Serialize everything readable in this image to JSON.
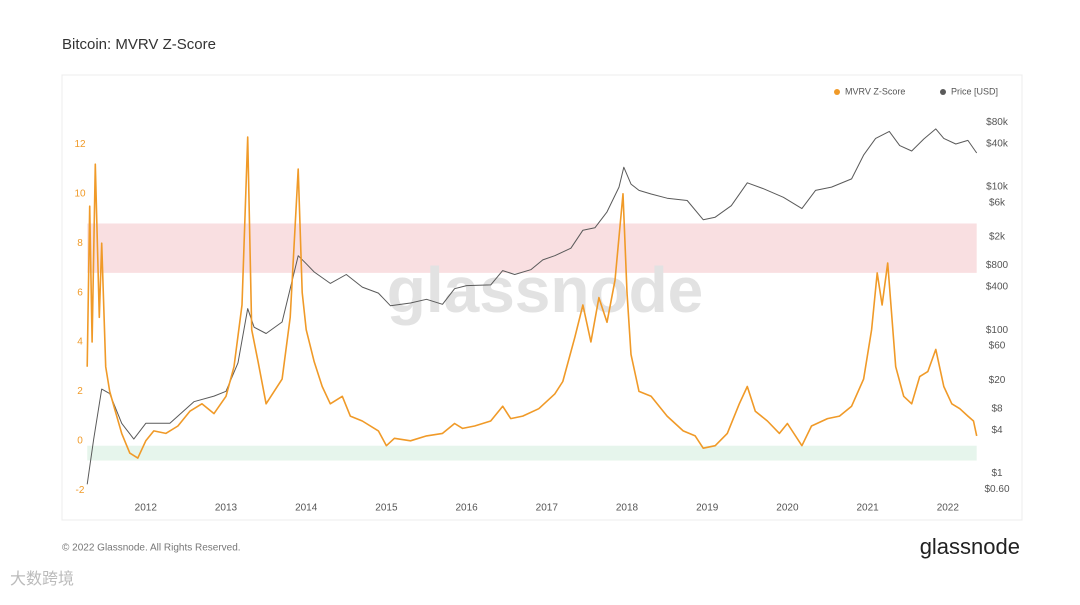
{
  "chart_data": {
    "type": "line",
    "title": "Bitcoin: MVRV Z-Score",
    "footer": "© 2022 Glassnode. All Rights Reserved.",
    "logo": "glassnode",
    "watermark": "glassnode",
    "corner_watermark": "大数跨境",
    "legend_position": "top-right",
    "grid": false,
    "xlim": [
      2011.03,
      2022.9
    ],
    "xticks": [
      2012,
      2013,
      2014,
      2015,
      2016,
      2017,
      2018,
      2019,
      2020,
      2021,
      2022
    ],
    "ylim": [
      -2.6,
      13.8
    ],
    "yticks": [
      -2,
      0,
      2,
      4,
      6,
      8,
      10,
      12
    ],
    "y2lim": [
      0.36,
      165000
    ],
    "y2_log": true,
    "y2ticks": [
      {
        "value": 80000,
        "label": "$80k"
      },
      {
        "value": 40000,
        "label": "$40k"
      },
      {
        "value": 10000,
        "label": "$10k"
      },
      {
        "value": 6000,
        "label": "$6k"
      },
      {
        "value": 2000,
        "label": "$2k"
      },
      {
        "value": 800,
        "label": "$800"
      },
      {
        "value": 400,
        "label": "$400"
      },
      {
        "value": 100,
        "label": "$100"
      },
      {
        "value": 60,
        "label": "$60"
      },
      {
        "value": 20,
        "label": "$20"
      },
      {
        "value": 8,
        "label": "$8"
      },
      {
        "value": 4,
        "label": "$4"
      },
      {
        "value": 1,
        "label": "$1"
      },
      {
        "value": 0.6,
        "label": "$0.60"
      }
    ],
    "bands": [
      {
        "from": 6.8,
        "to": 8.8,
        "color": "#f9dfe1"
      },
      {
        "from": -0.8,
        "to": -0.2,
        "color": "#e6f5ec"
      }
    ],
    "series": [
      {
        "name": "MVRV Z-Score",
        "color": "#f09a28",
        "x": [
          2011.27,
          2011.3,
          2011.33,
          2011.37,
          2011.42,
          2011.45,
          2011.5,
          2011.55,
          2011.62,
          2011.7,
          2011.8,
          2011.9,
          2012.0,
          2012.1,
          2012.25,
          2012.4,
          2012.55,
          2012.7,
          2012.85,
          2013.0,
          2013.1,
          2013.2,
          2013.27,
          2013.32,
          2013.4,
          2013.5,
          2013.6,
          2013.7,
          2013.8,
          2013.9,
          2013.95,
          2014.0,
          2014.1,
          2014.2,
          2014.3,
          2014.45,
          2014.55,
          2014.7,
          2014.9,
          2015.0,
          2015.1,
          2015.3,
          2015.5,
          2015.7,
          2015.85,
          2015.95,
          2016.1,
          2016.3,
          2016.45,
          2016.55,
          2016.7,
          2016.9,
          2017.0,
          2017.1,
          2017.2,
          2017.35,
          2017.45,
          2017.55,
          2017.65,
          2017.75,
          2017.85,
          2017.95,
          2018.0,
          2018.05,
          2018.15,
          2018.3,
          2018.5,
          2018.7,
          2018.85,
          2018.95,
          2019.1,
          2019.25,
          2019.4,
          2019.5,
          2019.6,
          2019.75,
          2019.9,
          2020.0,
          2020.18,
          2020.3,
          2020.5,
          2020.65,
          2020.8,
          2020.95,
          2021.05,
          2021.12,
          2021.18,
          2021.25,
          2021.35,
          2021.45,
          2021.55,
          2021.65,
          2021.75,
          2021.85,
          2021.95,
          2022.05,
          2022.15,
          2022.25,
          2022.32,
          2022.36
        ],
        "values": [
          3.0,
          9.5,
          4.0,
          11.2,
          5,
          8,
          3,
          2,
          1.2,
          0.3,
          -0.5,
          -0.7,
          0.0,
          0.4,
          0.3,
          0.6,
          1.2,
          1.5,
          1.1,
          1.8,
          3.0,
          5.5,
          12.3,
          4.5,
          3.2,
          1.5,
          2.0,
          2.5,
          5,
          11.0,
          6,
          4.5,
          3.2,
          2.2,
          1.5,
          1.8,
          1.0,
          0.8,
          0.4,
          -0.2,
          0.1,
          0,
          0.2,
          0.3,
          0.7,
          0.5,
          0.6,
          0.8,
          1.4,
          0.9,
          1.0,
          1.3,
          1.6,
          1.9,
          2.4,
          4.2,
          5.5,
          4,
          5.8,
          4.8,
          6.5,
          10.0,
          6.0,
          3.5,
          2.0,
          1.8,
          1.0,
          0.4,
          0.2,
          -0.3,
          -0.2,
          0.3,
          1.5,
          2.2,
          1.2,
          0.8,
          0.3,
          0.7,
          -0.2,
          0.6,
          0.9,
          1.0,
          1.4,
          2.5,
          4.5,
          6.8,
          5.5,
          7.2,
          3,
          1.8,
          1.5,
          2.6,
          2.8,
          3.7,
          2.2,
          1.5,
          1.3,
          1.0,
          0.8,
          0.2
        ]
      },
      {
        "name": "Price [USD]",
        "color": "#5a5a5a",
        "axis": "y2",
        "x": [
          2011.27,
          2011.35,
          2011.45,
          2011.55,
          2011.7,
          2011.85,
          2012.0,
          2012.3,
          2012.6,
          2012.85,
          2013.0,
          2013.15,
          2013.27,
          2013.35,
          2013.5,
          2013.7,
          2013.9,
          2014.0,
          2014.1,
          2014.3,
          2014.5,
          2014.7,
          2014.9,
          2015.05,
          2015.3,
          2015.5,
          2015.7,
          2015.85,
          2016.0,
          2016.3,
          2016.45,
          2016.6,
          2016.8,
          2016.95,
          2017.1,
          2017.3,
          2017.45,
          2017.6,
          2017.75,
          2017.9,
          2017.96,
          2018.05,
          2018.15,
          2018.3,
          2018.5,
          2018.75,
          2018.95,
          2019.1,
          2019.3,
          2019.5,
          2019.7,
          2019.95,
          2020.18,
          2020.35,
          2020.55,
          2020.8,
          2020.95,
          2021.1,
          2021.27,
          2021.4,
          2021.55,
          2021.7,
          2021.85,
          2021.95,
          2022.1,
          2022.25,
          2022.36
        ],
        "values": [
          0.7,
          3,
          15,
          13,
          5,
          3,
          5,
          5,
          10,
          12,
          14,
          35,
          200,
          110,
          90,
          130,
          1100,
          850,
          650,
          450,
          600,
          400,
          330,
          220,
          240,
          270,
          230,
          380,
          420,
          430,
          680,
          600,
          700,
          960,
          1100,
          1400,
          2500,
          2700,
          4500,
          10000,
          19000,
          11000,
          9000,
          8000,
          7000,
          6500,
          3500,
          3800,
          5500,
          11500,
          9500,
          7200,
          5000,
          9000,
          10000,
          13000,
          28000,
          48000,
          60000,
          38000,
          32000,
          47000,
          65000,
          48000,
          40000,
          45000,
          30000
        ]
      }
    ]
  }
}
